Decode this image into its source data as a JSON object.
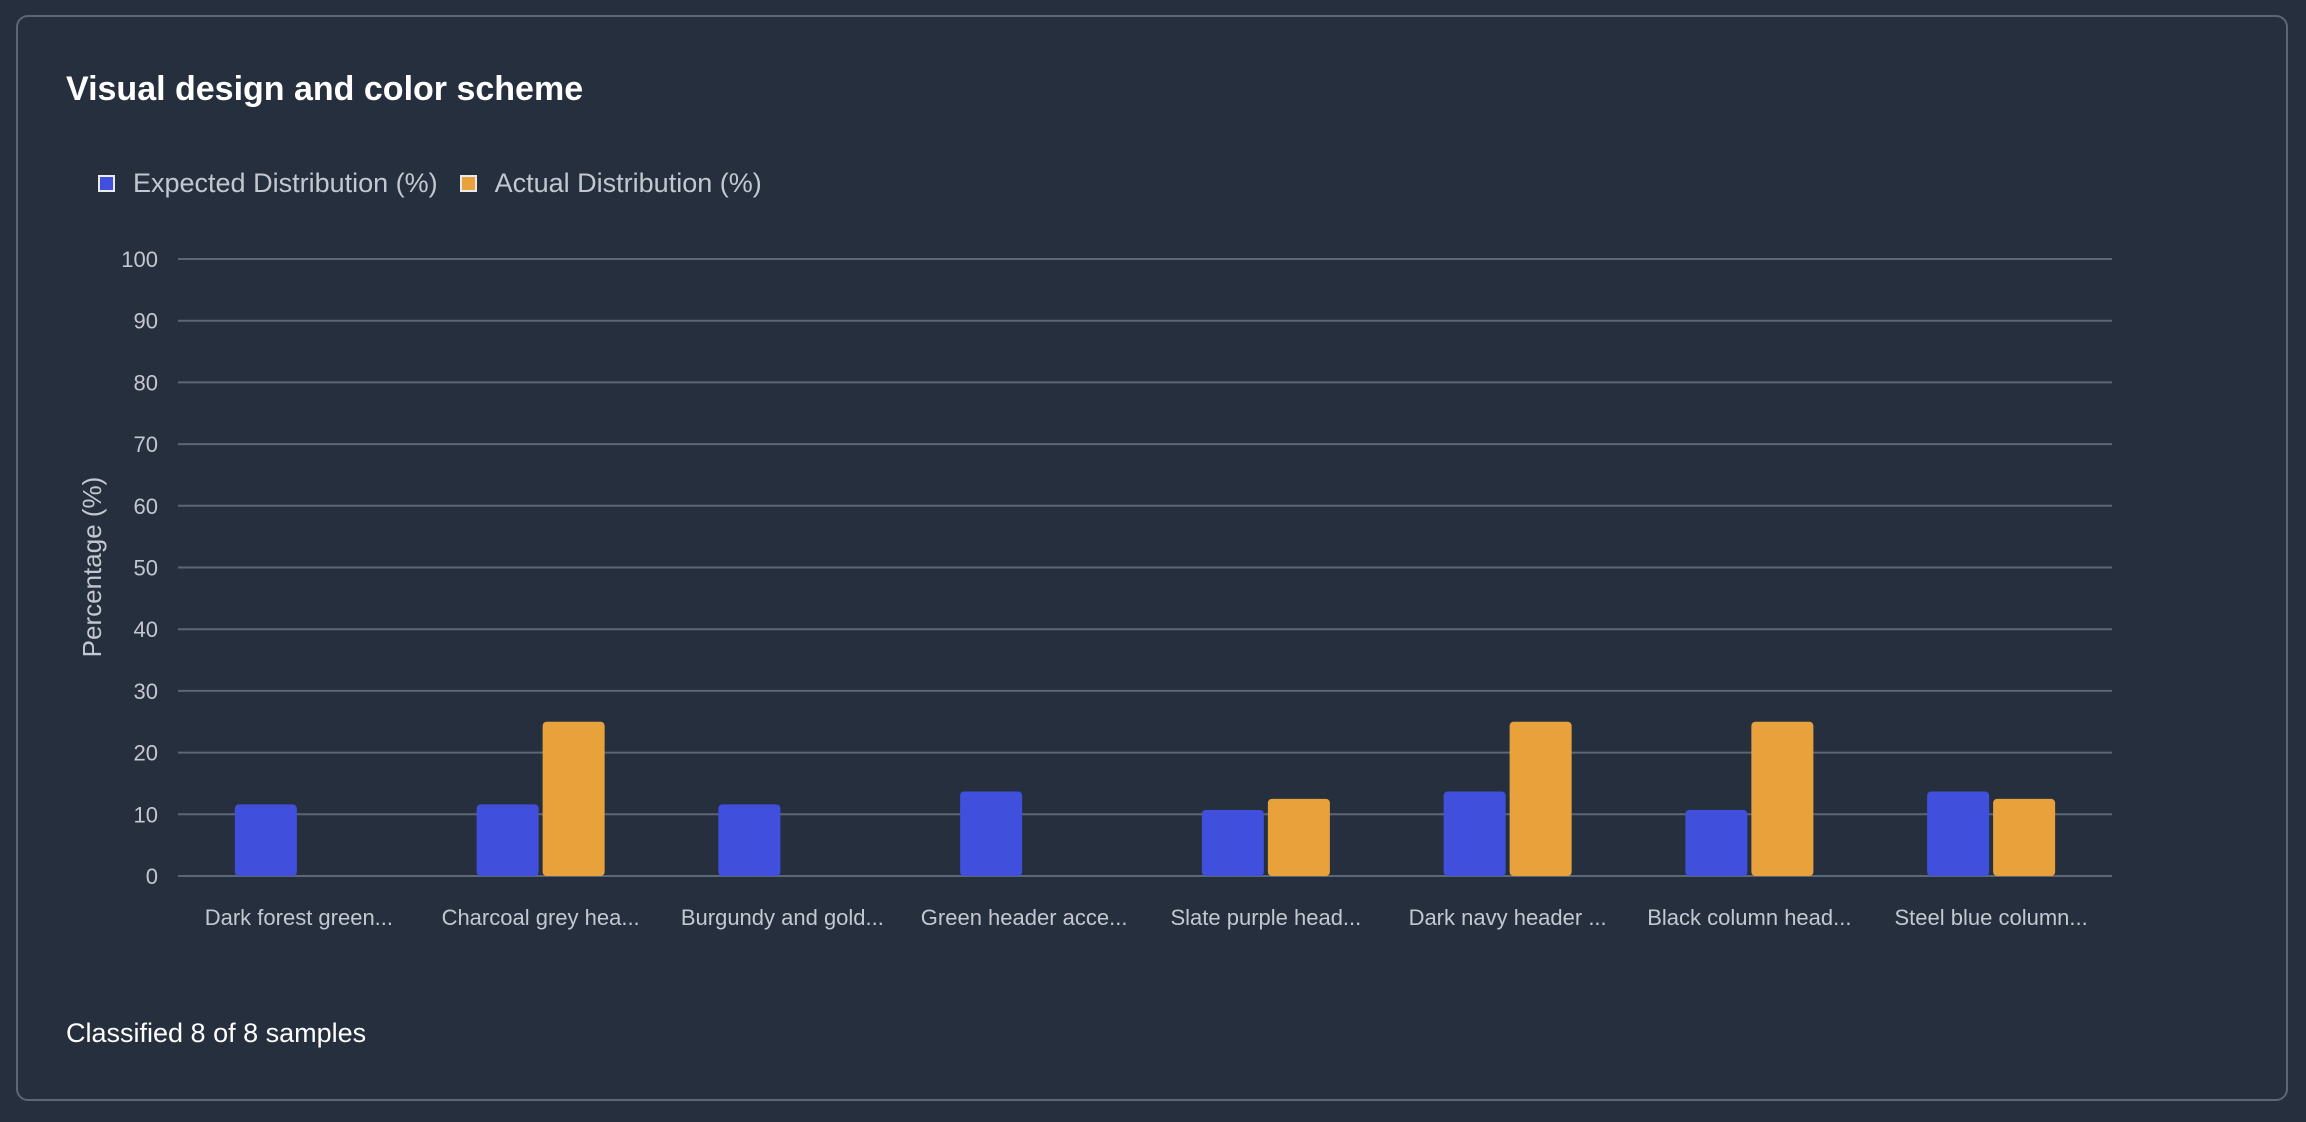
{
  "title": "Visual design and color scheme",
  "footer": "Classified 8 of 8 samples",
  "colors": {
    "expected": "#4050dc",
    "actual": "#e9a23b",
    "background": "#262f3e",
    "grid": "#5b6677"
  },
  "chart_data": {
    "type": "bar",
    "title": "",
    "xlabel": "",
    "ylabel": "Percentage (%)",
    "ylim": [
      0,
      100
    ],
    "yticks": [
      0,
      10,
      20,
      30,
      40,
      50,
      60,
      70,
      80,
      90,
      100
    ],
    "grid": true,
    "legend_position": "top-left",
    "categories": [
      "Dark forest green...",
      "Charcoal grey hea...",
      "Burgundy and gold...",
      "Green header acce...",
      "Slate purple head...",
      "Dark navy header ...",
      "Black column head...",
      "Steel blue column..."
    ],
    "series": [
      {
        "name": "Expected Distribution (%)",
        "color": "#4050dc",
        "values": [
          11.6,
          11.6,
          11.6,
          13.7,
          10.7,
          13.7,
          10.7,
          13.7
        ]
      },
      {
        "name": "Actual Distribution (%)",
        "color": "#e9a23b",
        "values": [
          0,
          25,
          0,
          0,
          12.5,
          25,
          25,
          12.5
        ]
      }
    ]
  }
}
